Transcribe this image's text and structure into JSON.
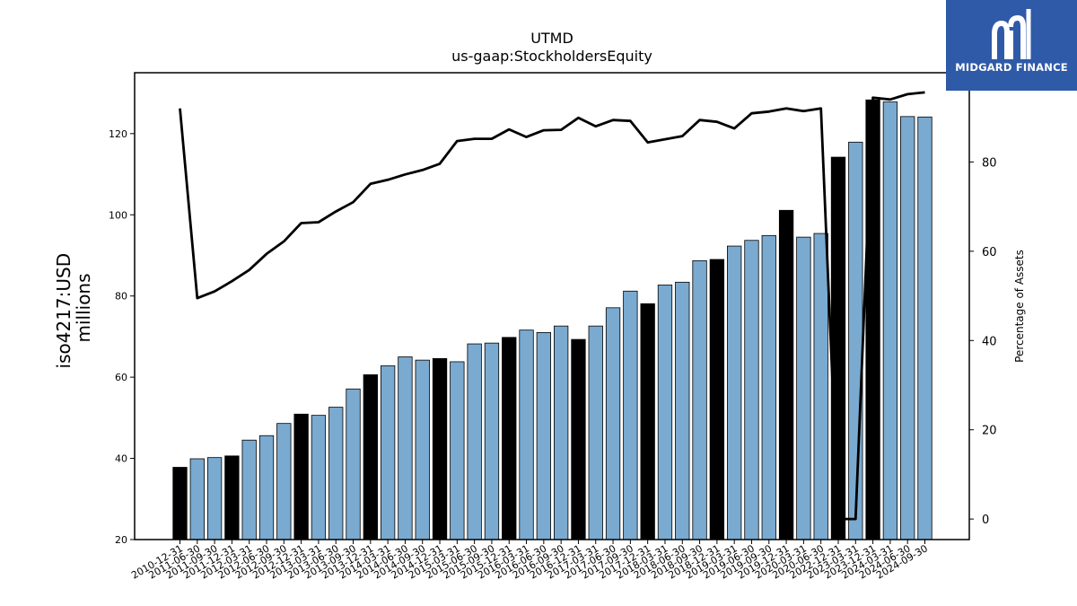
{
  "logo": {
    "text": "MIDGARD FINANCE",
    "icon": "mf-monogram-icon"
  },
  "chart_data": {
    "type": "bar",
    "title": "UTMD",
    "subtitle": "us-gaap:StockholdersEquity",
    "ylabel": "iso4217:USD\nmillions",
    "y2label": "Percentage of Assets",
    "ylim": [
      20,
      135
    ],
    "y2lim": [
      -4.6,
      100
    ],
    "yticks": [
      20,
      40,
      60,
      80,
      100,
      120
    ],
    "y2ticks": [
      0,
      20,
      40,
      60,
      80
    ],
    "colors": {
      "bar_default": "#7aaad0",
      "bar_annual": "#000000",
      "line": "#000000"
    },
    "categories": [
      "2010-12-31",
      "2011-06-30",
      "2011-09-30",
      "2011-12-31",
      "2012-03-31",
      "2012-06-30",
      "2012-09-30",
      "2012-12-31",
      "2013-03-31",
      "2013-06-30",
      "2013-09-30",
      "2013-12-31",
      "2014-03-31",
      "2014-06-30",
      "2014-09-30",
      "2014-12-31",
      "2015-03-31",
      "2015-06-30",
      "2015-09-30",
      "2015-12-31",
      "2016-03-31",
      "2016-06-30",
      "2016-09-30",
      "2016-12-31",
      "2017-03-31",
      "2017-06-30",
      "2017-09-30",
      "2017-12-31",
      "2018-03-31",
      "2018-06-30",
      "2018-09-30",
      "2018-12-31",
      "2019-03-31",
      "2019-06-30",
      "2019-09-30",
      "2019-12-31",
      "2020-03-31",
      "2020-06-30",
      "2022-12-31",
      "2023-03-31",
      "2023-12-31",
      "2024-03-31",
      "2024-06-30",
      "2024-09-30"
    ],
    "series": [
      {
        "type": "bar",
        "values": [
          37.8,
          39.9,
          40.2,
          40.6,
          44.5,
          45.6,
          48.6,
          50.9,
          50.6,
          52.6,
          57.1,
          60.6,
          62.8,
          65.0,
          64.2,
          64.6,
          63.8,
          68.2,
          68.4,
          69.8,
          71.6,
          71.0,
          72.6,
          69.3,
          72.6,
          77.1,
          81.2,
          78.1,
          82.7,
          83.4,
          88.7,
          89.0,
          92.3,
          93.7,
          94.9,
          101.1,
          94.5,
          95.4,
          114.2,
          117.9,
          128.3,
          127.8,
          124.2,
          124.1
        ],
        "annual": [
          true,
          false,
          false,
          true,
          false,
          false,
          false,
          true,
          false,
          false,
          false,
          true,
          false,
          false,
          false,
          true,
          false,
          false,
          false,
          true,
          false,
          false,
          false,
          true,
          false,
          false,
          false,
          true,
          false,
          false,
          false,
          true,
          false,
          false,
          false,
          true,
          false,
          false,
          true,
          false,
          true,
          false,
          false,
          false
        ]
      },
      {
        "type": "line",
        "axis": "right",
        "name": "Percentage of Assets",
        "values": [
          92.0,
          49.5,
          51.0,
          53.3,
          55.8,
          59.4,
          62.2,
          66.3,
          66.5,
          68.9,
          71.0,
          75.1,
          76.0,
          77.2,
          78.2,
          79.6,
          84.7,
          85.2,
          85.2,
          87.3,
          85.6,
          87.1,
          87.2,
          89.9,
          88.0,
          89.4,
          89.2,
          84.4,
          85.1,
          85.8,
          89.4,
          89.0,
          87.5,
          90.9,
          91.3,
          92.0,
          91.4,
          92.0,
          0.0,
          0.0,
          94.4,
          94.0,
          95.2,
          95.6
        ],
        "gaps_after": [
          37
        ]
      }
    ]
  }
}
